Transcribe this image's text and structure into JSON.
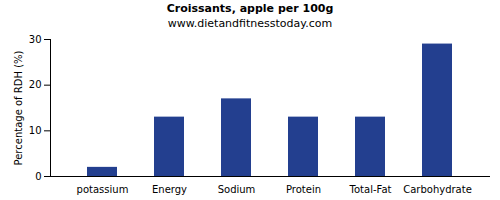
{
  "chart_data": {
    "type": "bar",
    "title": "Croissants, apple per 100g",
    "subtitle": "www.dietandfitnesstoday.com",
    "y_label": "Percentage of RDH (%)",
    "categories": [
      "potassium",
      "Energy",
      "Sodium",
      "Protein",
      "Total-Fat",
      "Carbohydrate"
    ],
    "values": [
      2,
      13,
      17,
      13,
      13,
      29
    ],
    "color": "#233f8f",
    "ylim": [
      0,
      30
    ],
    "yticks": [
      0,
      10,
      20,
      30
    ],
    "grid": false
  }
}
